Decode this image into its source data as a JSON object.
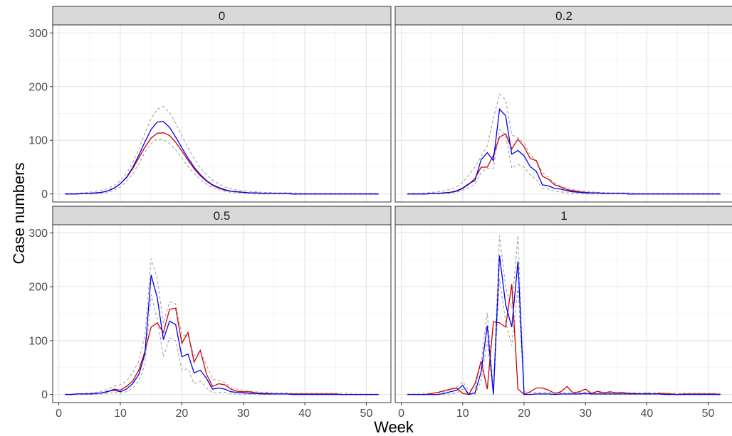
{
  "chart_data": {
    "type": "line",
    "facet_layout": "2x2 grid",
    "xlabel": "Week",
    "ylabel": "Case numbers",
    "xlim": [
      -1,
      54
    ],
    "ylim": [
      -15,
      315
    ],
    "x_ticks": [
      0,
      10,
      20,
      30,
      40,
      50
    ],
    "y_ticks": [
      0,
      100,
      200,
      300
    ],
    "grid": true,
    "legend": "none",
    "colors": {
      "observed": "#cc0000",
      "fitted": "#0000ee",
      "interval": "#a6a6a6",
      "strip_fill": "#d9d9d9",
      "strip_border": "#333333",
      "panel_border": "#333333",
      "grid_major": "#e5e5e5",
      "grid_minor": "#f2f2f2"
    },
    "series_roles": [
      {
        "role": "observed",
        "color": "#cc0000",
        "style": "solid"
      },
      {
        "role": "fitted",
        "color": "#0000ee",
        "style": "solid"
      },
      {
        "role": "interval-upper",
        "color": "#a6a6a6",
        "style": "dashed"
      },
      {
        "role": "interval-lower",
        "color": "#a6a6a6",
        "style": "dashed"
      }
    ],
    "panels": [
      {
        "label": "0",
        "weeks_start": 1,
        "observed": [
          0,
          0,
          0,
          1,
          1,
          2,
          3,
          6,
          11,
          19,
          30,
          47,
          67,
          87,
          104,
          113,
          114,
          109,
          96,
          80,
          63,
          47,
          34,
          24,
          16,
          11,
          7,
          5,
          4,
          3,
          2,
          2,
          1,
          1,
          1,
          1,
          1,
          0,
          0,
          0,
          0,
          0,
          0,
          0,
          0,
          0,
          0,
          0,
          0,
          0,
          0,
          0
        ],
        "fitted": [
          0,
          0,
          0,
          1,
          1,
          2,
          3,
          6,
          11,
          19,
          31,
          49,
          72,
          97,
          120,
          134,
          135,
          124,
          106,
          86,
          67,
          50,
          36,
          25,
          17,
          12,
          8,
          5,
          4,
          3,
          2,
          2,
          1,
          1,
          1,
          1,
          1,
          0,
          0,
          0,
          0,
          0,
          0,
          0,
          0,
          0,
          0,
          0,
          0,
          0,
          0,
          0
        ],
        "upper": [
          1,
          1,
          1,
          2,
          3,
          5,
          7,
          10,
          16,
          25,
          38,
          58,
          84,
          113,
          140,
          158,
          163,
          152,
          132,
          108,
          86,
          66,
          49,
          36,
          26,
          19,
          13,
          10,
          7,
          6,
          5,
          4,
          3,
          3,
          2,
          2,
          2,
          2,
          1,
          1,
          1,
          1,
          1,
          1,
          1,
          1,
          1,
          1,
          1,
          1,
          1,
          1
        ],
        "lower": [
          0,
          0,
          0,
          0,
          0,
          0,
          1,
          3,
          7,
          13,
          23,
          37,
          56,
          78,
          94,
          102,
          101,
          94,
          82,
          67,
          51,
          38,
          27,
          18,
          12,
          8,
          5,
          3,
          2,
          1,
          1,
          0,
          0,
          0,
          0,
          0,
          0,
          0,
          0,
          0,
          0,
          0,
          0,
          0,
          0,
          0,
          0,
          0,
          0,
          0,
          0,
          0
        ]
      },
      {
        "label": "0.2",
        "weeks_start": 1,
        "observed": [
          0,
          0,
          0,
          0,
          1,
          1,
          2,
          3,
          5,
          10,
          18,
          29,
          50,
          50,
          72,
          106,
          112,
          84,
          102,
          88,
          66,
          62,
          33,
          27,
          17,
          13,
          8,
          6,
          4,
          3,
          2,
          2,
          1,
          1,
          1,
          1,
          0,
          0,
          0,
          0,
          0,
          0,
          0,
          0,
          0,
          0,
          0,
          0,
          0,
          0,
          0,
          0
        ],
        "fitted": [
          0,
          0,
          0,
          0,
          1,
          1,
          2,
          3,
          6,
          11,
          19,
          25,
          64,
          77,
          62,
          158,
          146,
          74,
          81,
          71,
          51,
          42,
          17,
          15,
          10,
          9,
          6,
          4,
          3,
          2,
          2,
          2,
          1,
          1,
          1,
          1,
          0,
          0,
          0,
          0,
          0,
          0,
          0,
          0,
          0,
          0,
          0,
          0,
          0,
          0,
          0,
          0
        ],
        "upper": [
          1,
          1,
          1,
          2,
          3,
          4,
          6,
          9,
          13,
          22,
          35,
          50,
          70,
          90,
          140,
          186,
          175,
          110,
          105,
          95,
          72,
          62,
          40,
          30,
          20,
          15,
          10,
          8,
          6,
          5,
          4,
          3,
          3,
          2,
          2,
          2,
          2,
          1,
          1,
          1,
          1,
          1,
          1,
          1,
          1,
          1,
          1,
          1,
          1,
          1,
          1,
          1
        ],
        "lower": [
          0,
          0,
          0,
          0,
          0,
          0,
          0,
          1,
          3,
          7,
          12,
          18,
          40,
          48,
          48,
          120,
          110,
          48,
          55,
          50,
          35,
          27,
          10,
          9,
          5,
          4,
          2,
          1,
          1,
          0,
          0,
          0,
          0,
          0,
          0,
          0,
          0,
          0,
          0,
          0,
          0,
          0,
          0,
          0,
          0,
          0,
          0,
          0,
          0,
          0,
          0,
          0
        ]
      },
      {
        "label": "0.5",
        "weeks_start": 1,
        "observed": [
          0,
          0,
          1,
          1,
          1,
          2,
          3,
          5,
          10,
          8,
          15,
          25,
          45,
          80,
          125,
          133,
          115,
          158,
          160,
          95,
          115,
          60,
          82,
          38,
          15,
          20,
          18,
          10,
          6,
          5,
          5,
          3,
          2,
          2,
          1,
          1,
          1,
          1,
          1,
          1,
          1,
          1,
          1,
          1,
          1,
          0,
          0,
          0,
          0,
          0,
          0,
          0
        ],
        "fitted": [
          0,
          0,
          1,
          1,
          1,
          2,
          3,
          6,
          8,
          5,
          10,
          20,
          37,
          75,
          222,
          180,
          102,
          136,
          130,
          70,
          75,
          40,
          45,
          30,
          10,
          12,
          10,
          5,
          4,
          3,
          2,
          2,
          1,
          1,
          1,
          1,
          1,
          0,
          0,
          0,
          0,
          0,
          0,
          0,
          0,
          0,
          0,
          0,
          0,
          0,
          0,
          0
        ],
        "upper": [
          1,
          1,
          1,
          2,
          3,
          4,
          6,
          10,
          15,
          18,
          25,
          40,
          62,
          110,
          252,
          215,
          132,
          172,
          168,
          110,
          110,
          72,
          80,
          55,
          28,
          26,
          22,
          13,
          10,
          8,
          6,
          5,
          4,
          4,
          3,
          3,
          3,
          2,
          2,
          2,
          2,
          2,
          2,
          2,
          2,
          2,
          2,
          1,
          1,
          1,
          1,
          1
        ],
        "lower": [
          0,
          0,
          0,
          0,
          0,
          0,
          1,
          2,
          4,
          2,
          5,
          12,
          25,
          55,
          185,
          140,
          70,
          105,
          100,
          45,
          48,
          20,
          25,
          12,
          3,
          4,
          4,
          1,
          1,
          0,
          0,
          0,
          0,
          0,
          0,
          0,
          0,
          0,
          0,
          0,
          0,
          0,
          0,
          0,
          0,
          0,
          0,
          0,
          0,
          0,
          0,
          0
        ]
      },
      {
        "label": "1",
        "weeks_start": 1,
        "observed": [
          0,
          0,
          0,
          0,
          2,
          4,
          7,
          10,
          12,
          2,
          0,
          20,
          62,
          10,
          135,
          133,
          125,
          205,
          10,
          0,
          5,
          12,
          12,
          8,
          2,
          5,
          15,
          3,
          5,
          10,
          2,
          6,
          3,
          5,
          3,
          4,
          2,
          2,
          1,
          2,
          1,
          2,
          2,
          1,
          0,
          1,
          1,
          1,
          1,
          1,
          1,
          0
        ],
        "fitted": [
          0,
          0,
          0,
          0,
          0,
          0,
          2,
          5,
          8,
          17,
          0,
          3,
          42,
          128,
          0,
          258,
          167,
          125,
          247,
          0,
          0,
          1,
          1,
          1,
          0,
          1,
          1,
          1,
          1,
          2,
          1,
          1,
          1,
          1,
          1,
          1,
          1,
          1,
          1,
          1,
          1,
          1,
          0,
          0,
          0,
          0,
          0,
          0,
          0,
          0,
          0,
          0
        ],
        "upper": [
          1,
          1,
          1,
          2,
          2,
          3,
          5,
          9,
          14,
          24,
          8,
          12,
          60,
          152,
          8,
          295,
          200,
          160,
          295,
          5,
          3,
          4,
          4,
          4,
          3,
          3,
          3,
          3,
          3,
          4,
          3,
          3,
          3,
          3,
          3,
          3,
          3,
          3,
          3,
          3,
          3,
          3,
          2,
          2,
          2,
          2,
          2,
          2,
          2,
          2,
          2,
          2
        ],
        "lower": [
          0,
          0,
          0,
          0,
          0,
          0,
          0,
          1,
          3,
          10,
          0,
          0,
          25,
          100,
          0,
          215,
          135,
          90,
          200,
          0,
          0,
          0,
          0,
          0,
          0,
          0,
          0,
          0,
          0,
          0,
          0,
          0,
          0,
          0,
          0,
          0,
          0,
          0,
          0,
          0,
          0,
          0,
          0,
          0,
          0,
          0,
          0,
          0,
          0,
          0,
          0,
          0
        ]
      }
    ]
  }
}
